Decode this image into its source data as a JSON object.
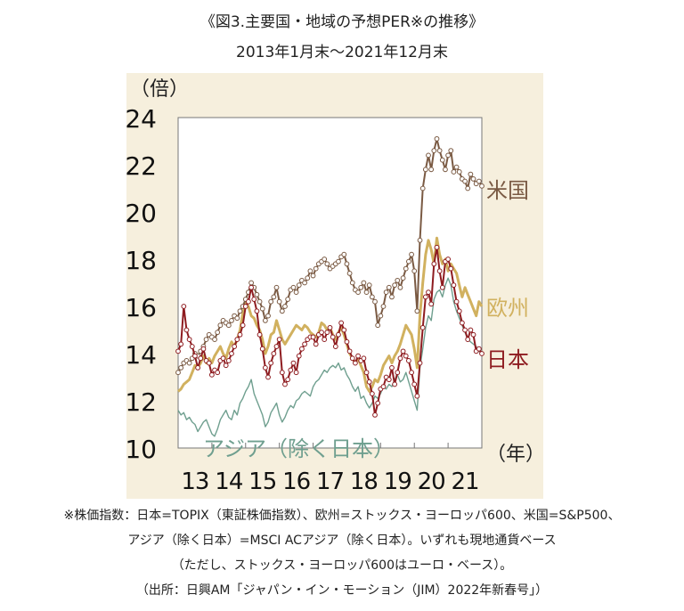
{
  "header": {
    "title": "《図3.主要国・地域の予想PER※の推移》",
    "subtitle": "2013年1月末～2021年12月末"
  },
  "footnotes": [
    "※株価指数：日本=TOPIX（東証株価指数）、欧州=ストックス・ヨーロッパ600、米国=S&P500、",
    "アジア（除く日本）=MSCI ACアジア（除く日本）。いずれも現地通貨ベース",
    "（ただし、ストックス・ヨーロッパ600はユーロ・ベース）。",
    "（出所：日興AM「ジャパン・イン・モーション（JIM）2022年新春号」）"
  ],
  "colors": {
    "panel_bg": "#f6efdd",
    "us": "#7a5a43",
    "europe": "#d1b15f",
    "japan": "#8e1c20",
    "asia": "#6f9f8f"
  },
  "chart_data": {
    "type": "line",
    "ylabel": "（倍）",
    "xlabel": "（年）",
    "ylim": [
      10,
      24
    ],
    "yticks": [
      10,
      12,
      14,
      16,
      18,
      20,
      22,
      24
    ],
    "xlim": [
      0,
      108
    ],
    "xticks": [
      "13",
      "14",
      "15",
      "16",
      "17",
      "18",
      "19",
      "20",
      "21"
    ],
    "grid": false,
    "series": [
      {
        "name": "米国",
        "color_key": "us",
        "markers": true,
        "values": [
          13.2,
          13.4,
          13.6,
          13.7,
          13.6,
          13.8,
          14.0,
          13.9,
          14.1,
          14.3,
          14.6,
          14.8,
          14.7,
          14.6,
          14.9,
          15.2,
          15.4,
          15.3,
          15.2,
          15.4,
          15.6,
          15.5,
          15.8,
          16.0,
          16.3,
          16.6,
          17.0,
          16.8,
          16.5,
          16.2,
          15.9,
          15.4,
          15.6,
          16.2,
          16.4,
          16.8,
          16.2,
          15.8,
          16.0,
          16.3,
          16.7,
          16.8,
          16.6,
          16.9,
          17.1,
          17.0,
          17.2,
          17.5,
          17.3,
          17.6,
          17.8,
          17.9,
          18.0,
          17.8,
          17.6,
          17.7,
          17.8,
          17.9,
          18.1,
          18.2,
          17.8,
          17.4,
          17.0,
          16.7,
          16.6,
          16.8,
          17.0,
          16.6,
          16.9,
          16.4,
          16.2,
          15.2,
          15.6,
          16.0,
          16.6,
          16.8,
          16.4,
          16.9,
          17.1,
          16.8,
          17.2,
          17.6,
          17.9,
          18.2,
          17.5,
          15.8,
          18.8,
          21.0,
          21.8,
          22.4,
          21.8,
          22.6,
          23.1,
          22.6,
          22.2,
          21.8,
          22.4,
          22.6,
          21.7,
          21.9,
          21.7,
          21.4,
          21.3,
          21.0,
          21.6,
          21.4,
          21.2,
          21.3,
          21.1
        ]
      },
      {
        "name": "欧州",
        "color_key": "europe",
        "markers": false,
        "values": [
          12.4,
          12.5,
          12.7,
          12.8,
          12.9,
          13.2,
          13.5,
          13.4,
          13.6,
          13.9,
          13.6,
          13.8,
          13.6,
          13.9,
          14.1,
          14.3,
          14.0,
          13.8,
          14.2,
          14.5,
          14.3,
          14.6,
          15.0,
          15.7,
          16.2,
          16.0,
          15.6,
          15.5,
          15.2,
          15.0,
          14.6,
          14.0,
          14.3,
          14.8,
          14.9,
          15.4,
          15.0,
          14.6,
          14.4,
          14.6,
          14.8,
          15.0,
          15.2,
          15.1,
          15.0,
          15.2,
          15.1,
          14.9,
          14.8,
          14.7,
          14.9,
          15.3,
          15.2,
          15.0,
          15.1,
          14.8,
          14.6,
          14.9,
          15.1,
          14.8,
          14.4,
          14.0,
          13.8,
          13.6,
          13.8,
          13.5,
          13.2,
          12.6,
          12.4,
          12.6,
          12.9,
          12.8,
          13.1,
          13.5,
          13.7,
          13.9,
          13.6,
          13.9,
          14.1,
          14.4,
          14.8,
          15.2,
          15.0,
          14.8,
          14.2,
          13.4,
          15.6,
          17.0,
          18.2,
          18.8,
          18.4,
          17.8,
          18.9,
          18.2,
          17.8,
          18.0,
          17.5,
          17.8,
          17.6,
          17.4,
          16.9,
          16.4,
          16.8,
          16.5,
          16.2,
          15.9,
          15.6,
          16.2,
          16.0
        ]
      },
      {
        "name": "日本",
        "color_key": "japan",
        "markers": true,
        "values": [
          14.1,
          14.4,
          16.0,
          15.0,
          14.6,
          14.3,
          13.9,
          13.4,
          13.8,
          14.2,
          13.7,
          13.6,
          13.1,
          13.3,
          13.2,
          13.7,
          13.8,
          13.5,
          13.7,
          14.0,
          14.3,
          14.6,
          14.8,
          15.2,
          16.0,
          16.2,
          16.8,
          16.3,
          15.8,
          14.8,
          14.2,
          13.4,
          13.0,
          13.6,
          14.0,
          14.3,
          14.6,
          13.2,
          12.7,
          12.9,
          13.3,
          13.6,
          13.2,
          13.9,
          14.2,
          14.4,
          14.6,
          14.7,
          14.7,
          14.4,
          14.8,
          14.9,
          14.6,
          14.9,
          15.1,
          14.7,
          14.3,
          14.8,
          15.3,
          15.0,
          14.5,
          14.1,
          13.8,
          13.6,
          13.9,
          13.7,
          13.8,
          13.2,
          12.8,
          12.3,
          11.4,
          11.9,
          12.5,
          12.6,
          13.0,
          12.9,
          13.4,
          12.7,
          13.2,
          13.8,
          14.1,
          13.9,
          13.7,
          13.2,
          12.7,
          12.2,
          13.6,
          15.1,
          16.4,
          16.6,
          16.1,
          17.8,
          18.5,
          17.5,
          16.8,
          17.9,
          18.0,
          17.6,
          16.9,
          16.2,
          15.8,
          15.3,
          15.0,
          14.6,
          15.0,
          14.8,
          14.1,
          14.2,
          14.0
        ]
      },
      {
        "name": "アジア（除く日本）",
        "color_key": "asia",
        "markers": false,
        "values": [
          11.6,
          11.4,
          11.5,
          11.2,
          11.3,
          11.1,
          11.0,
          10.7,
          10.9,
          11.1,
          11.2,
          10.9,
          10.6,
          10.5,
          10.8,
          11.2,
          11.4,
          11.6,
          11.3,
          11.2,
          11.6,
          11.4,
          11.9,
          12.1,
          12.4,
          12.6,
          12.9,
          12.3,
          12.0,
          11.7,
          11.4,
          10.9,
          11.1,
          11.5,
          11.7,
          11.9,
          11.4,
          11.1,
          11.3,
          11.6,
          11.8,
          11.7,
          12.0,
          12.1,
          12.3,
          12.4,
          12.3,
          12.2,
          12.6,
          12.8,
          12.9,
          13.1,
          13.3,
          13.2,
          13.4,
          13.5,
          13.4,
          13.6,
          13.3,
          13.4,
          13.1,
          12.9,
          12.6,
          12.4,
          12.6,
          12.1,
          12.2,
          11.9,
          11.7,
          11.9,
          12.2,
          12.1,
          12.3,
          12.6,
          12.5,
          12.7,
          12.6,
          12.9,
          13.1,
          12.8,
          12.9,
          13.2,
          12.8,
          12.4,
          12.0,
          11.6,
          13.4,
          14.2,
          15.1,
          15.6,
          15.4,
          16.3,
          16.6,
          16.7,
          16.4,
          16.9,
          17.2,
          16.9,
          16.2,
          15.8,
          15.5,
          15.2,
          14.9,
          14.6,
          14.5,
          14.4,
          14.3,
          14.1,
          14.0
        ]
      }
    ]
  }
}
